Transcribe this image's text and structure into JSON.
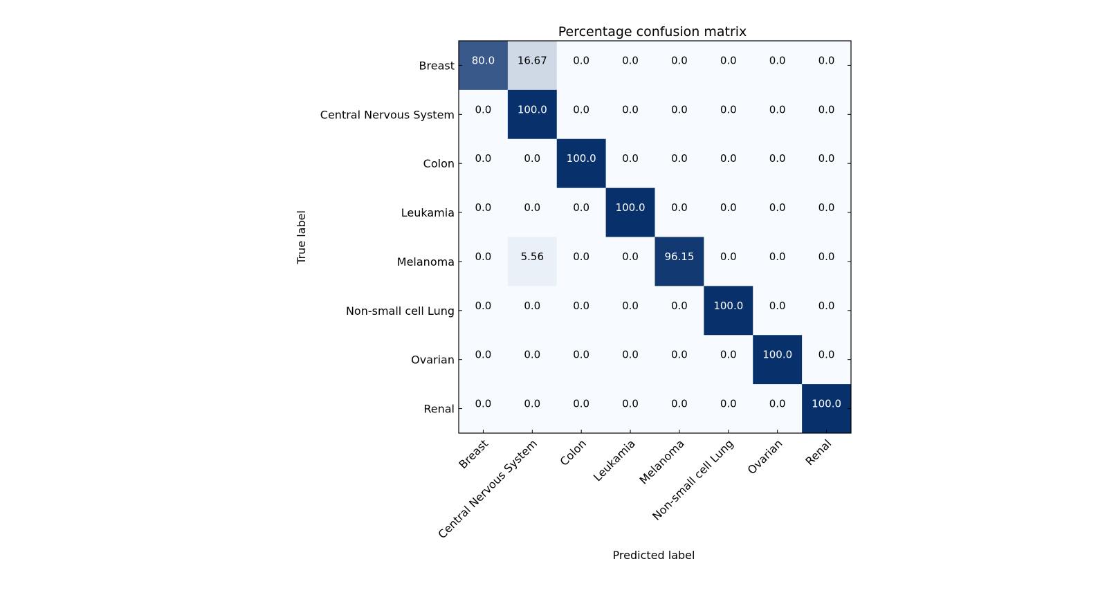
{
  "chart_data": {
    "type": "heatmap",
    "title": "Percentage confusion matrix",
    "xlabel": "Predicted label",
    "ylabel": "True label",
    "x_categories": [
      "Breast",
      "Central Nervous System",
      "Colon",
      "Leukamia",
      "Melanoma",
      "Non-small cell Lung",
      "Ovarian",
      "Renal"
    ],
    "y_categories": [
      "Breast",
      "Central Nervous System",
      "Colon",
      "Leukamia",
      "Melanoma",
      "Non-small cell Lung",
      "Ovarian",
      "Renal"
    ],
    "cell_labels": [
      [
        "80.0",
        "16.67",
        "0.0",
        "0.0",
        "0.0",
        "0.0",
        "0.0",
        "0.0"
      ],
      [
        "0.0",
        "100.0",
        "0.0",
        "0.0",
        "0.0",
        "0.0",
        "0.0",
        "0.0"
      ],
      [
        "0.0",
        "0.0",
        "100.0",
        "0.0",
        "0.0",
        "0.0",
        "0.0",
        "0.0"
      ],
      [
        "0.0",
        "0.0",
        "0.0",
        "100.0",
        "0.0",
        "0.0",
        "0.0",
        "0.0"
      ],
      [
        "0.0",
        "5.56",
        "0.0",
        "0.0",
        "96.15",
        "0.0",
        "0.0",
        "0.0"
      ],
      [
        "0.0",
        "0.0",
        "0.0",
        "0.0",
        "0.0",
        "100.0",
        "0.0",
        "0.0"
      ],
      [
        "0.0",
        "0.0",
        "0.0",
        "0.0",
        "0.0",
        "0.0",
        "100.0",
        "0.0"
      ],
      [
        "0.0",
        "0.0",
        "0.0",
        "0.0",
        "0.0",
        "0.0",
        "0.0",
        "100.0"
      ]
    ],
    "colormap": "Blues",
    "grid": false,
    "colors": {
      "high": "#08306b",
      "low": "#f7fbff",
      "text_on_dark": "#ffffff",
      "text_on_light": "#000000"
    }
  }
}
